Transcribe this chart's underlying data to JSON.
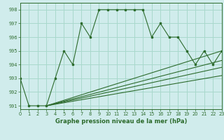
{
  "title": "Graphe pression niveau de la mer (hPa)",
  "bg_color": "#d0ecec",
  "grid_color": "#a8d8cc",
  "line_color": "#2d6b2d",
  "xlim": [
    0,
    23
  ],
  "ylim": [
    990.75,
    998.5
  ],
  "yticks": [
    991,
    992,
    993,
    994,
    995,
    996,
    997,
    998
  ],
  "xticks": [
    0,
    1,
    2,
    3,
    4,
    5,
    6,
    7,
    8,
    9,
    10,
    11,
    12,
    13,
    14,
    15,
    16,
    17,
    18,
    19,
    20,
    21,
    22,
    23
  ],
  "main_x": [
    0,
    1,
    2,
    3,
    4,
    5,
    6,
    7,
    8,
    9,
    10,
    11,
    12,
    13,
    14,
    15,
    16,
    17,
    18,
    19,
    20,
    21,
    22,
    23
  ],
  "main_y": [
    993,
    991,
    991,
    991,
    993,
    995,
    994,
    997,
    996,
    998,
    998,
    998,
    998,
    998,
    998,
    996,
    997,
    996,
    996,
    995,
    994,
    995,
    994,
    995
  ],
  "ref_lines": [
    {
      "x": [
        3,
        23
      ],
      "y": [
        991,
        995.0
      ]
    },
    {
      "x": [
        3,
        23
      ],
      "y": [
        991,
        994.3
      ]
    },
    {
      "x": [
        3,
        23
      ],
      "y": [
        991,
        993.8
      ]
    },
    {
      "x": [
        3,
        23
      ],
      "y": [
        991,
        993.2
      ]
    }
  ]
}
